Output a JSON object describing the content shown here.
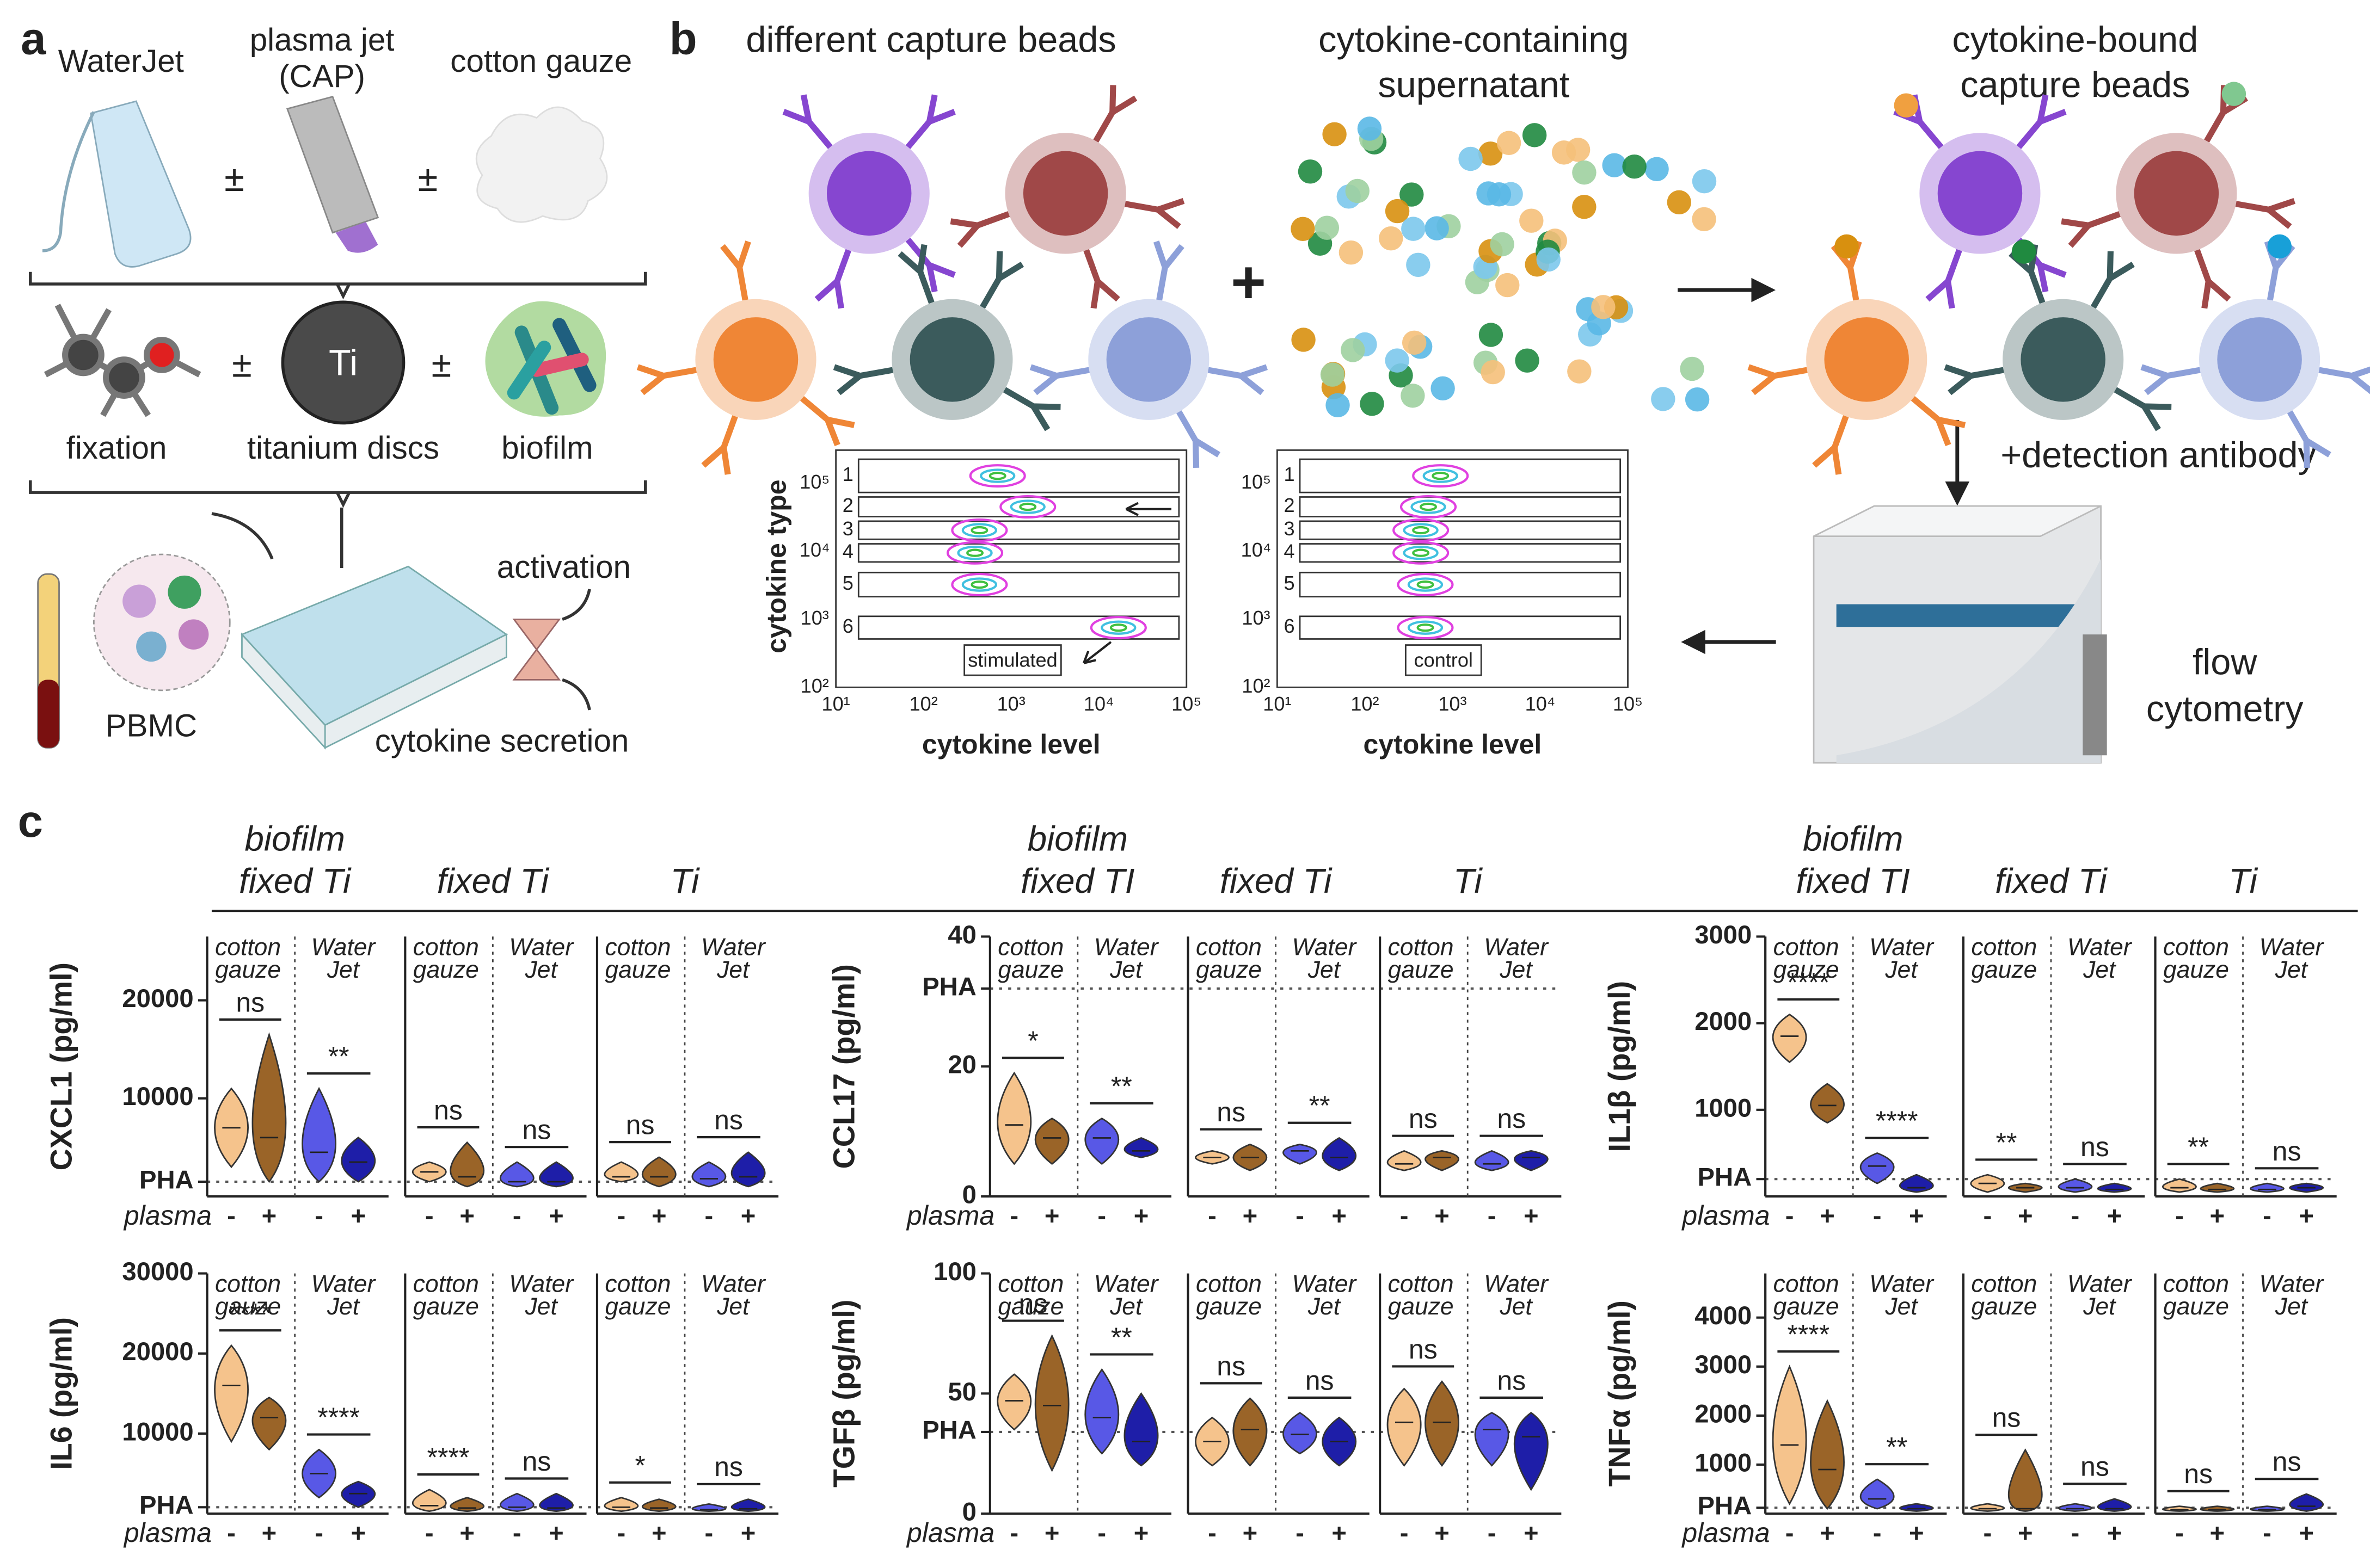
{
  "panel_a": {
    "letter": "a",
    "top_items": [
      [
        "WaterJet"
      ],
      [
        "plasma jet",
        "(CAP)"
      ],
      [
        "cotton gauze"
      ]
    ],
    "middle_items": [
      "fixation",
      "titanium discs",
      "biofilm"
    ],
    "disc_text": "Ti",
    "plus_minus": "±",
    "cells": "PBMC",
    "activation": "activation",
    "secretion": "cytokine secretion"
  },
  "panel_b": {
    "letter": "b",
    "beads_title": "different capture beads",
    "supernatant_title": [
      "cytokine-containing",
      "supernatant"
    ],
    "bound_title": [
      "cytokine-bound",
      "capture beads"
    ],
    "plus": "+",
    "detection": "+detection antibody",
    "cytometry": [
      "flow",
      "cytometry"
    ],
    "flow_plots": {
      "ylabel": "cytokine type",
      "xlabel": "cytokine level",
      "xticks": [
        "10¹",
        "10²",
        "10³",
        "10⁴",
        "10⁵"
      ],
      "yticks": [
        "10⁵",
        "10⁴",
        "10³",
        "10²"
      ],
      "bands": [
        "1",
        "2",
        "3",
        "4",
        "5",
        "6"
      ],
      "tags": [
        "stimulated",
        "control"
      ]
    }
  },
  "panel_c": {
    "letter": "c",
    "header_groups": [
      [
        [
          "biofilm",
          "fixed Ti"
        ],
        [
          "fixed Ti"
        ],
        [
          "Ti"
        ]
      ],
      [
        [
          "biofilm",
          "fixed TI"
        ],
        [
          "fixed Ti"
        ],
        [
          "Ti"
        ]
      ],
      [
        [
          "biofilm",
          "fixed TI"
        ],
        [
          "fixed Ti"
        ],
        [
          "Ti"
        ]
      ]
    ],
    "group_labels": [
      [
        "cotton",
        "gauze"
      ],
      [
        "Water",
        "Jet"
      ]
    ],
    "treatment_label": "plasma",
    "treatment_signs": [
      "-",
      "+"
    ],
    "colors": [
      "#f5c38c",
      "#9a6428",
      "#5858e6",
      "#1e1ea8"
    ],
    "plots": [
      {
        "ylabel": "CXCL1 (pg/ml)",
        "ylim": [
          0,
          26500
        ],
        "yticks": [
          {
            "value": 1500,
            "label": "PHA"
          },
          10000,
          20000
        ],
        "violins": [
          [
            3000,
            7000,
            11000
          ],
          [
            1500,
            6000,
            16500
          ],
          [
            1500,
            4500,
            11000
          ],
          [
            1500,
            3500,
            6000
          ],
          [
            1500,
            2500,
            3500
          ],
          [
            1000,
            2000,
            5500
          ],
          [
            1000,
            1500,
            3500
          ],
          [
            1000,
            1500,
            3500
          ],
          [
            1500,
            2000,
            3500
          ],
          [
            1000,
            2000,
            4000
          ],
          [
            1000,
            1800,
            3500
          ],
          [
            1000,
            2000,
            4500
          ]
        ],
        "significance": [
          "ns",
          "**",
          "ns",
          "ns",
          "ns",
          "ns"
        ]
      },
      {
        "ylabel": "CCL17 (pg/ml)",
        "ylim": [
          0,
          40
        ],
        "yticks": [
          0,
          20,
          {
            "value": 32,
            "label": "PHA"
          },
          40
        ],
        "violins": [
          [
            5,
            11,
            19
          ],
          [
            5,
            9,
            12
          ],
          [
            5,
            9,
            12
          ],
          [
            6,
            7,
            9
          ],
          [
            5,
            6,
            7
          ],
          [
            4,
            6,
            8
          ],
          [
            5,
            7,
            8
          ],
          [
            4,
            6,
            9
          ],
          [
            4,
            5,
            7
          ],
          [
            4,
            6,
            7
          ],
          [
            4,
            5,
            7
          ],
          [
            4,
            6,
            7
          ]
        ],
        "significance": [
          "*",
          "**",
          "ns",
          "**",
          "ns",
          "ns"
        ]
      },
      {
        "ylabel": "IL1β (pg/ml)",
        "ylim": [
          0,
          3000
        ],
        "yticks": [
          {
            "value": 200,
            "label": "PHA"
          },
          1000,
          2000,
          3000
        ],
        "violins": [
          [
            1550,
            1850,
            2100
          ],
          [
            850,
            1050,
            1300
          ],
          [
            150,
            350,
            500
          ],
          [
            50,
            100,
            250
          ],
          [
            50,
            150,
            250
          ],
          [
            50,
            100,
            150
          ],
          [
            50,
            100,
            200
          ],
          [
            50,
            80,
            150
          ],
          [
            50,
            100,
            200
          ],
          [
            50,
            80,
            150
          ],
          [
            50,
            80,
            150
          ],
          [
            50,
            100,
            150
          ]
        ],
        "significance": [
          "****",
          "****",
          "**",
          "ns",
          "**",
          "ns"
        ]
      },
      {
        "ylabel": "IL6 (pg/ml)",
        "ylim": [
          0,
          30000
        ],
        "yticks": [
          {
            "value": 800,
            "label": "PHA"
          },
          10000,
          20000,
          30000
        ],
        "violins": [
          [
            9000,
            16000,
            21000
          ],
          [
            8000,
            12000,
            14500
          ],
          [
            2000,
            5000,
            8000
          ],
          [
            800,
            2500,
            4000
          ],
          [
            300,
            1000,
            3000
          ],
          [
            300,
            700,
            2000
          ],
          [
            300,
            800,
            2500
          ],
          [
            300,
            700,
            2500
          ],
          [
            300,
            800,
            2000
          ],
          [
            300,
            700,
            1800
          ],
          [
            300,
            500,
            1200
          ],
          [
            300,
            600,
            1800
          ]
        ],
        "significance": [
          "****",
          "****",
          "****",
          "ns",
          "*",
          "ns"
        ]
      },
      {
        "ylabel": "TGFβ (pg/ml)",
        "ylim": [
          0,
          100
        ],
        "yticks": [
          0,
          {
            "value": 34,
            "label": "PHA"
          },
          50,
          100
        ],
        "violins": [
          [
            35,
            47,
            58
          ],
          [
            18,
            45,
            74
          ],
          [
            25,
            40,
            60
          ],
          [
            20,
            30,
            50
          ],
          [
            20,
            30,
            40
          ],
          [
            20,
            35,
            48
          ],
          [
            25,
            33,
            42
          ],
          [
            20,
            30,
            40
          ],
          [
            20,
            38,
            52
          ],
          [
            20,
            38,
            55
          ],
          [
            20,
            35,
            42
          ],
          [
            10,
            32,
            42
          ]
        ],
        "significance": [
          "ns",
          "**",
          "ns",
          "ns",
          "ns",
          "ns"
        ]
      },
      {
        "ylabel": "TNFα (pg/ml)",
        "ylim": [
          0,
          4900
        ],
        "yticks": [
          {
            "value": 120,
            "label": "PHA"
          },
          1000,
          2000,
          3000,
          4000
        ],
        "violins": [
          [
            200,
            1400,
            3000
          ],
          [
            100,
            900,
            2300
          ],
          [
            100,
            300,
            700
          ],
          [
            50,
            100,
            200
          ],
          [
            50,
            100,
            200
          ],
          [
            50,
            100,
            1300
          ],
          [
            50,
            100,
            200
          ],
          [
            50,
            100,
            300
          ],
          [
            50,
            80,
            150
          ],
          [
            50,
            80,
            150
          ],
          [
            50,
            80,
            150
          ],
          [
            50,
            150,
            400
          ]
        ],
        "significance": [
          "****",
          "**",
          "ns",
          "ns",
          "ns",
          "ns"
        ]
      }
    ]
  }
}
